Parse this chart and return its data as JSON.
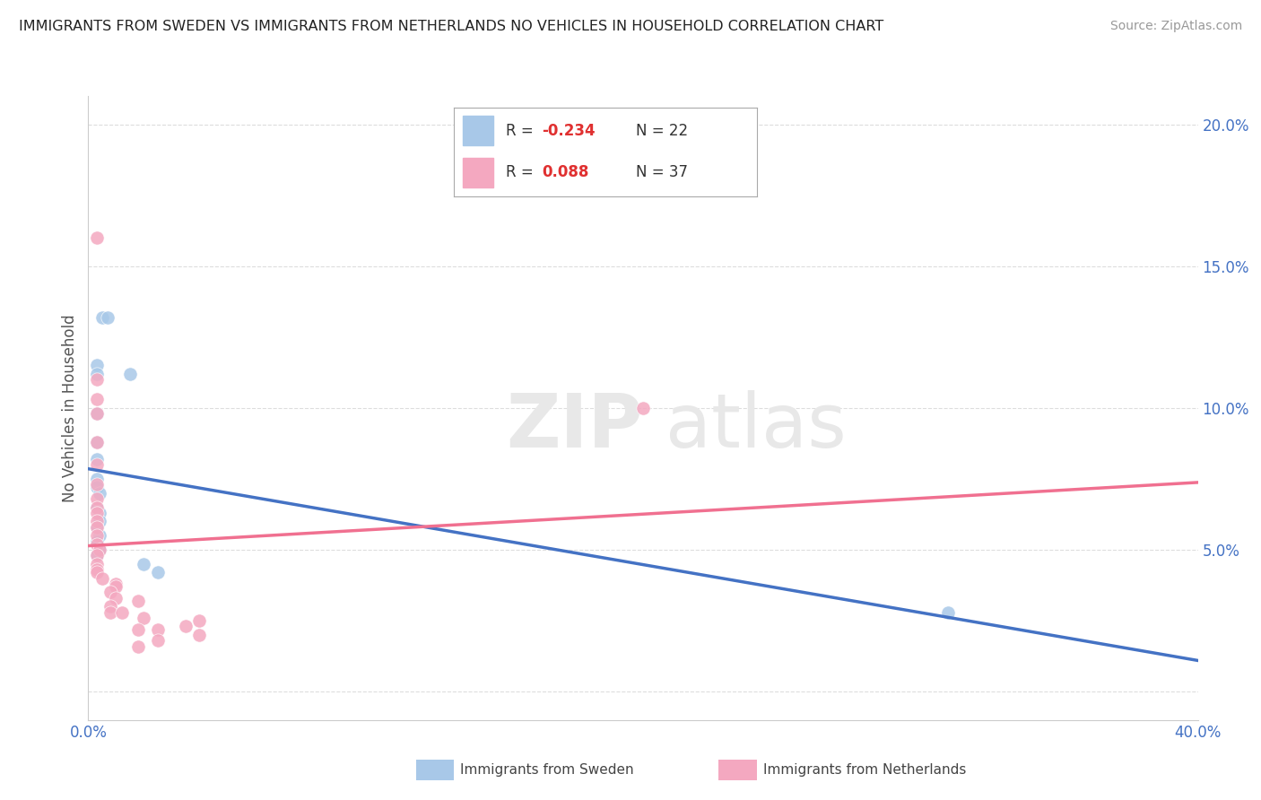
{
  "title": "IMMIGRANTS FROM SWEDEN VS IMMIGRANTS FROM NETHERLANDS NO VEHICLES IN HOUSEHOLD CORRELATION CHART",
  "source": "Source: ZipAtlas.com",
  "ylabel": "No Vehicles in Household",
  "color_sweden": "#a8c8e8",
  "color_netherlands": "#f4a8c0",
  "color_sweden_line": "#4472c4",
  "color_netherlands_line": "#f07090",
  "color_tick": "#4472c4",
  "xlim": [
    0.0,
    0.4
  ],
  "ylim": [
    -0.01,
    0.21
  ],
  "ytick_vals": [
    0.0,
    0.05,
    0.1,
    0.15,
    0.2
  ],
  "ytick_labels": [
    "",
    "5.0%",
    "10.0%",
    "15.0%",
    "20.0%"
  ],
  "sweden_points": [
    [
      0.005,
      0.132
    ],
    [
      0.007,
      0.132
    ],
    [
      0.003,
      0.115
    ],
    [
      0.003,
      0.112
    ],
    [
      0.015,
      0.112
    ],
    [
      0.003,
      0.098
    ],
    [
      0.003,
      0.088
    ],
    [
      0.003,
      0.082
    ],
    [
      0.003,
      0.075
    ],
    [
      0.003,
      0.072
    ],
    [
      0.004,
      0.07
    ],
    [
      0.003,
      0.065
    ],
    [
      0.004,
      0.063
    ],
    [
      0.004,
      0.06
    ],
    [
      0.003,
      0.058
    ],
    [
      0.004,
      0.055
    ],
    [
      0.003,
      0.053
    ],
    [
      0.004,
      0.05
    ],
    [
      0.003,
      0.048
    ],
    [
      0.02,
      0.045
    ],
    [
      0.025,
      0.042
    ],
    [
      0.31,
      0.028
    ]
  ],
  "netherlands_points": [
    [
      0.003,
      0.16
    ],
    [
      0.2,
      0.1
    ],
    [
      0.003,
      0.11
    ],
    [
      0.003,
      0.103
    ],
    [
      0.003,
      0.098
    ],
    [
      0.003,
      0.088
    ],
    [
      0.003,
      0.08
    ],
    [
      0.003,
      0.073
    ],
    [
      0.003,
      0.068
    ],
    [
      0.003,
      0.065
    ],
    [
      0.003,
      0.063
    ],
    [
      0.003,
      0.06
    ],
    [
      0.003,
      0.058
    ],
    [
      0.003,
      0.055
    ],
    [
      0.003,
      0.052
    ],
    [
      0.004,
      0.05
    ],
    [
      0.003,
      0.048
    ],
    [
      0.003,
      0.045
    ],
    [
      0.003,
      0.043
    ],
    [
      0.003,
      0.042
    ],
    [
      0.005,
      0.04
    ],
    [
      0.01,
      0.038
    ],
    [
      0.01,
      0.037
    ],
    [
      0.008,
      0.035
    ],
    [
      0.01,
      0.033
    ],
    [
      0.018,
      0.032
    ],
    [
      0.008,
      0.03
    ],
    [
      0.008,
      0.028
    ],
    [
      0.012,
      0.028
    ],
    [
      0.02,
      0.026
    ],
    [
      0.04,
      0.025
    ],
    [
      0.035,
      0.023
    ],
    [
      0.018,
      0.022
    ],
    [
      0.025,
      0.022
    ],
    [
      0.04,
      0.02
    ],
    [
      0.025,
      0.018
    ],
    [
      0.018,
      0.016
    ]
  ],
  "legend_sweden_R": "-0.234",
  "legend_sweden_N": "22",
  "legend_netherlands_R": "0.088",
  "legend_netherlands_N": "37"
}
